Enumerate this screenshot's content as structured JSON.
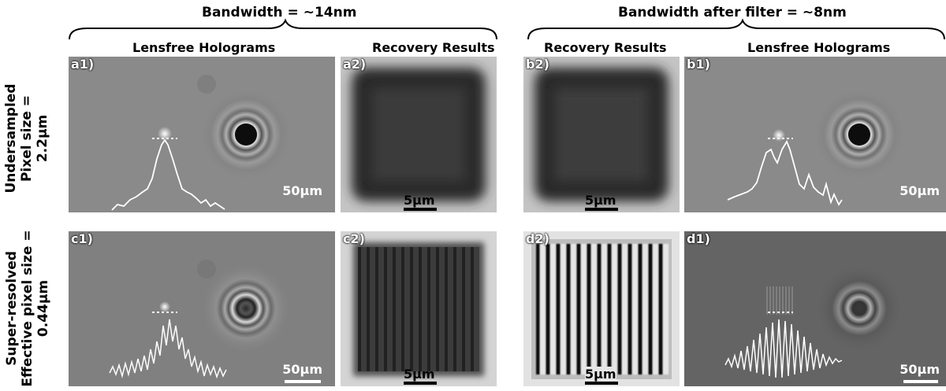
{
  "headers": {
    "left": "Bandwidth = ~14nm",
    "right": "Bandwidth after filter = ~8nm"
  },
  "subheaders": {
    "lensfree_left": "Lensfree Holograms",
    "recovery_left": "Recovery Results",
    "recovery_right": "Recovery Results",
    "lensfree_right": "Lensfree Holograms"
  },
  "row_labels": {
    "top_line1": "Undersampled",
    "top_line2": "Pixel size =",
    "top_line3": "2.2µm",
    "bottom_line1": "Super-resolved",
    "bottom_line2": "Effective pixel size =",
    "bottom_line3": "0.44µm"
  },
  "panels": {
    "a1": {
      "label": "a1)",
      "scale": "50µm"
    },
    "a2": {
      "label": "a2)",
      "scale": "5µm"
    },
    "b2": {
      "label": "b2)",
      "scale": "5µm"
    },
    "b1": {
      "label": "b1)",
      "scale": "50µm"
    },
    "c1": {
      "label": "c1)",
      "scale": "50µm"
    },
    "c2": {
      "label": "c2)",
      "scale": "5µm"
    },
    "d2": {
      "label": "d2)",
      "scale": "5µm"
    },
    "d1": {
      "label": "d1)",
      "scale": "50µm"
    }
  },
  "colors": {
    "hologram_bg": "#8a8a8a",
    "recovery_bg": "#b8b8b8",
    "text_white": "#ffffff",
    "text_black": "#000000"
  }
}
